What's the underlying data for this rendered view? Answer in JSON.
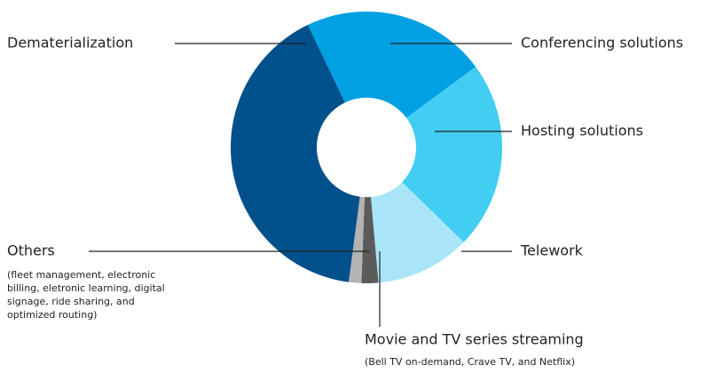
{
  "chart_data": {
    "type": "donut",
    "categories": [
      "Conferencing solutions",
      "Hosting solutions",
      "Telework",
      "Movie and TV series streaming",
      "Others",
      "Dematerialization"
    ],
    "values": [
      22,
      22.4,
      11.3,
      2,
      1.5,
      40.8
    ],
    "colors": [
      "#00a0e3",
      "#42cef2",
      "#a9e5f8",
      "#5b5b5b",
      "#b3b3b3",
      "#00508b"
    ],
    "notes": [
      null,
      null,
      null,
      [
        "(Bell TV on-demand, Crave TV, and Netflix)"
      ],
      [
        "(fleet management, electronic",
        "billing, eletronic learning, digital",
        "signage, ride sharing, and",
        "optimized routing)"
      ],
      null
    ]
  }
}
